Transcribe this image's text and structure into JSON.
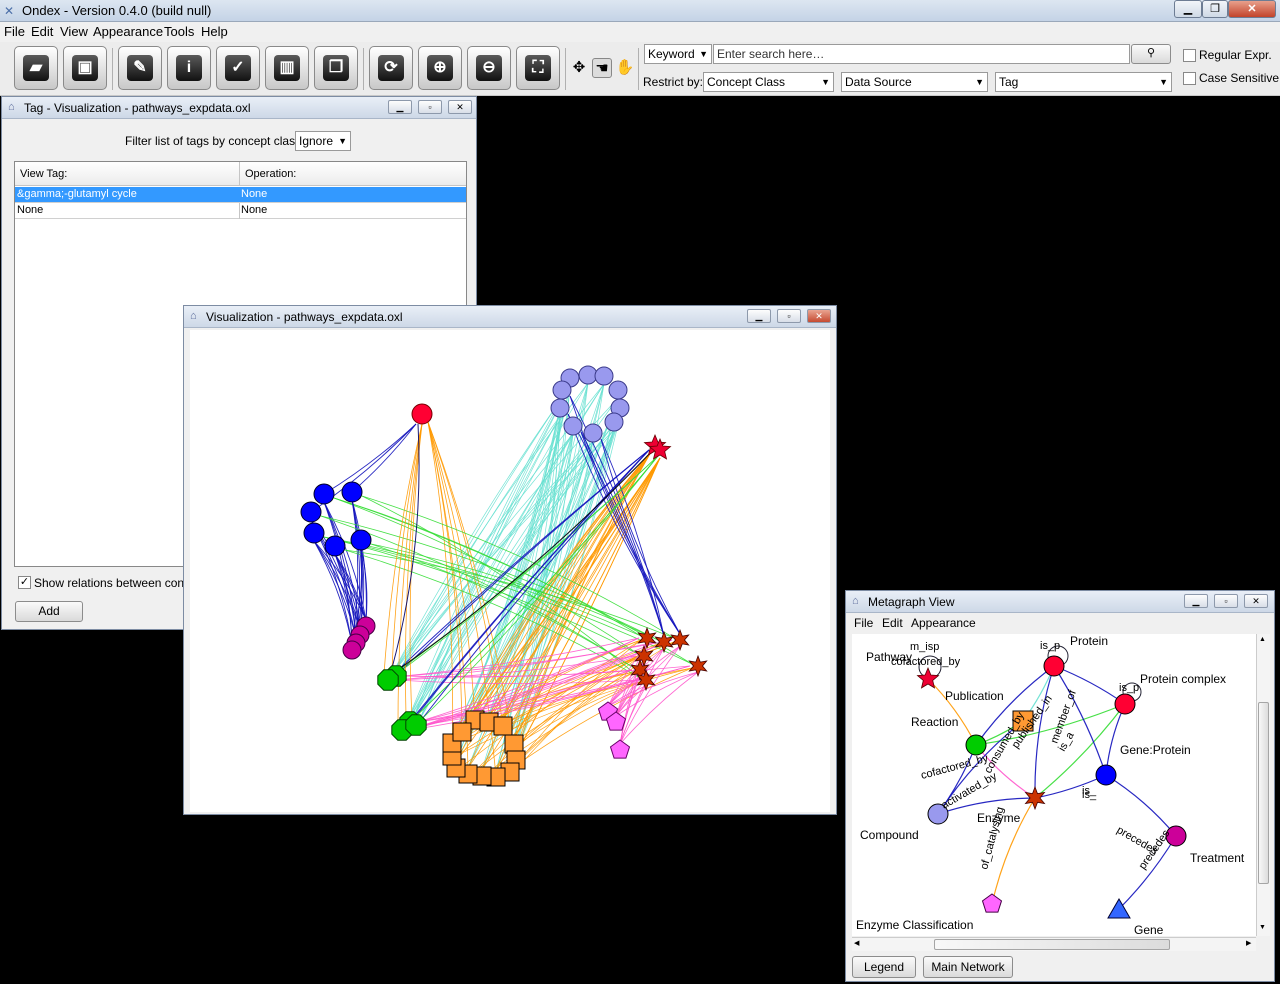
{
  "app": {
    "title": "Ondex - Version 0.4.0 (build null)",
    "menu": [
      "File",
      "Edit",
      "View",
      "Appearance",
      "Tools",
      "Help"
    ],
    "window_controls": [
      "minimize",
      "restore",
      "close"
    ]
  },
  "toolbar": {
    "buttons": [
      {
        "name": "open-icon",
        "glyph": "📂"
      },
      {
        "name": "save-icon",
        "glyph": "💾"
      },
      {
        "name": "wand-icon",
        "glyph": "✎"
      },
      {
        "name": "info-icon",
        "glyph": "i"
      },
      {
        "name": "checkbox-icon",
        "glyph": "☑"
      },
      {
        "name": "trash-icon",
        "glyph": "🗑"
      },
      {
        "name": "copy-icon",
        "glyph": "❐"
      },
      {
        "name": "refresh-icon",
        "glyph": "⟳"
      },
      {
        "name": "zoom-in-icon",
        "glyph": "⊕"
      },
      {
        "name": "zoom-out-icon",
        "glyph": "⊖"
      },
      {
        "name": "fit-icon",
        "glyph": "⛶"
      }
    ],
    "nav_icons": [
      "move-icon",
      "hand-select-icon",
      "hand-icon"
    ]
  },
  "search": {
    "type_selected": "Keyword",
    "placeholder": "Enter search here…",
    "search_button_icon": "search-icon",
    "regular_expr_label": "Regular Expr.",
    "case_sensitive_label": "Case Sensitive",
    "restrict_label": "Restrict by:",
    "concept_class": "Concept Class",
    "data_source": "Data Source",
    "tag": "Tag"
  },
  "tag_window": {
    "title": "Tag - Visualization - pathways_expdata.oxl",
    "filter_label": "Filter list of tags by concept class:",
    "filter_value": "Ignore",
    "columns": [
      "View Tag:",
      "Operation:"
    ],
    "rows": [
      {
        "tag": "&gamma;-glutamyl cycle",
        "operation": "None",
        "selected": true
      },
      {
        "tag": "None",
        "operation": "None",
        "selected": false
      }
    ],
    "show_relations_label": "Show relations between concep",
    "add_button": "Add"
  },
  "viz_window": {
    "title": "Visualization - pathways_expdata.oxl"
  },
  "metagraph_window": {
    "title": "Metagraph View",
    "menu": [
      "File",
      "Edit",
      "Appearance"
    ],
    "node_labels": [
      "Pathway",
      "Publication",
      "Protein",
      "Protein complex",
      "Reaction",
      "Gene:Protein",
      "Compound",
      "Enzyme",
      "Treatment",
      "Enzyme Classification",
      "Gene"
    ],
    "edge_labels": [
      "m_isp",
      "cofactored_by",
      "is_p",
      "is_p",
      "is_",
      "is_",
      "precedes",
      "precedes",
      "cofactored_by",
      "activated_by",
      "consumed_by",
      "published_in",
      "member_of",
      "is_a",
      "of_catalysing"
    ],
    "buttons": {
      "legend": "Legend",
      "main_network": "Main Network"
    }
  },
  "colors": {
    "protein": "#ff0033",
    "protein_complex": "#ff0033",
    "compound": "#9999ee",
    "reaction": "#00cc00",
    "publication": "#ff9933",
    "enzyme": "#cc3300",
    "gene_protein": "#0000ff",
    "treatment": "#cc0099",
    "enzyme_classification": "#ff66ff",
    "gene": "#3366ff",
    "pathway": "#ee0033",
    "edge_cyan": "#66e0d0",
    "edge_orange": "#ff9900",
    "edge_green": "#33dd33",
    "edge_blue": "#1111bb",
    "edge_pink": "#ff55cc",
    "selection": "#3399ff"
  }
}
